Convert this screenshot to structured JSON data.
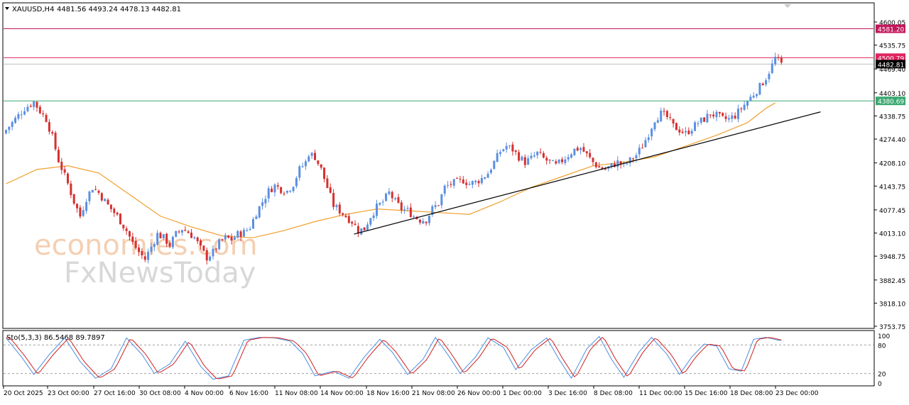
{
  "window": {
    "symbol_label": "XAUUSD,H4",
    "ohlc": "4481.56 4493.24 4478.13 4482.81"
  },
  "price_axis": {
    "ticks": [
      "4600.05",
      "4535.75",
      "4469.40",
      "4403.10",
      "4338.75",
      "4274.40",
      "4208.10",
      "4143.75",
      "4077.45",
      "4013.10",
      "3948.75",
      "3882.45",
      "3818.10",
      "3753.75"
    ],
    "tick_values": [
      4600.05,
      4535.75,
      4469.4,
      4403.1,
      4338.75,
      4274.4,
      4208.1,
      4143.75,
      4077.45,
      4013.1,
      3948.75,
      3882.45,
      3818.1,
      3753.75
    ]
  },
  "levels": [
    {
      "label": "4581.20",
      "value": 4581.2,
      "color": "#c2185b",
      "style": "line"
    },
    {
      "label": "4500.79",
      "value": 4500.79,
      "color": "#e0245e",
      "style": "line"
    },
    {
      "label": "4482.81",
      "value": 4482.81,
      "color": "#000000",
      "style": "current"
    },
    {
      "label": "4380.69",
      "value": 4380.69,
      "color": "#3aa870",
      "style": "line"
    }
  ],
  "stoch": {
    "label": "Sto(5,3,3) 86.5468 89.7897",
    "ticks": [
      "100",
      "80",
      "20",
      "0"
    ],
    "tick_values": [
      100,
      80,
      20,
      0
    ]
  },
  "time_axis": {
    "labels": [
      "20 Oct 2025",
      "23 Oct 00:00",
      "27 Oct 16:00",
      "30 Oct 08:00",
      "4 Nov 00:00",
      "6 Nov 16:00",
      "11 Nov 08:00",
      "14 Nov 00:00",
      "18 Nov 16:00",
      "21 Nov 08:00",
      "26 Nov 00:00",
      "1 Dec 00:00",
      "3 Dec 16:00",
      "8 Dec 08:00",
      "11 Dec 00:00",
      "15 Dec 16:00",
      "18 Dec 08:00",
      "23 Dec 00:00"
    ]
  },
  "watermark": {
    "line1": "economies.com",
    "line2": "FxNewsToday"
  },
  "colors": {
    "bull": "#5b8fe0",
    "bear": "#d63030",
    "ma": "#f0a030",
    "stoch_main": "#4a8fe0",
    "stoch_signal": "#d02020",
    "trendline": "#000000"
  },
  "chart_data": {
    "type": "candlestick",
    "symbol": "XAUUSD",
    "timeframe": "H4",
    "ylim": [
      3753.75,
      4625
    ],
    "close_path": [
      [
        0,
        4300
      ],
      [
        3,
        4330
      ],
      [
        6,
        4360
      ],
      [
        9,
        4378
      ],
      [
        11,
        4352
      ],
      [
        13,
        4330
      ],
      [
        15,
        4280
      ],
      [
        17,
        4215
      ],
      [
        20,
        4150
      ],
      [
        22,
        4100
      ],
      [
        24,
        4060
      ],
      [
        26,
        4110
      ],
      [
        28,
        4140
      ],
      [
        30,
        4125
      ],
      [
        33,
        4090
      ],
      [
        36,
        4060
      ],
      [
        39,
        4020
      ],
      [
        41,
        3985
      ],
      [
        43,
        3960
      ],
      [
        45,
        3940
      ],
      [
        47,
        3975
      ],
      [
        49,
        4010
      ],
      [
        51,
        4000
      ],
      [
        53,
        3980
      ],
      [
        55,
        4010
      ],
      [
        57,
        4025
      ],
      [
        59,
        4015
      ],
      [
        61,
        4000
      ],
      [
        63,
        3970
      ],
      [
        65,
        3945
      ],
      [
        67,
        3960
      ],
      [
        69,
        3985
      ],
      [
        71,
        4000
      ],
      [
        73,
        3995
      ],
      [
        75,
        4010
      ],
      [
        77,
        4015
      ],
      [
        79,
        4030
      ],
      [
        81,
        4070
      ],
      [
        83,
        4100
      ],
      [
        85,
        4130
      ],
      [
        87,
        4145
      ],
      [
        89,
        4135
      ],
      [
        91,
        4130
      ],
      [
        93,
        4150
      ],
      [
        95,
        4190
      ],
      [
        97,
        4210
      ],
      [
        98,
        4235
      ],
      [
        100,
        4225
      ],
      [
        102,
        4190
      ],
      [
        104,
        4140
      ],
      [
        106,
        4090
      ],
      [
        108,
        4075
      ],
      [
        110,
        4060
      ],
      [
        112,
        4045
      ],
      [
        114,
        4020
      ],
      [
        116,
        4025
      ],
      [
        118,
        4060
      ],
      [
        120,
        4085
      ],
      [
        122,
        4100
      ],
      [
        124,
        4125
      ],
      [
        126,
        4100
      ],
      [
        128,
        4080
      ],
      [
        130,
        4075
      ],
      [
        132,
        4060
      ],
      [
        134,
        4050
      ],
      [
        136,
        4050
      ],
      [
        138,
        4080
      ],
      [
        140,
        4095
      ],
      [
        142,
        4140
      ],
      [
        144,
        4150
      ],
      [
        146,
        4155
      ],
      [
        148,
        4160
      ],
      [
        150,
        4150
      ],
      [
        152,
        4155
      ],
      [
        154,
        4165
      ],
      [
        156,
        4180
      ],
      [
        158,
        4210
      ],
      [
        160,
        4240
      ],
      [
        162,
        4255
      ],
      [
        164,
        4245
      ],
      [
        166,
        4225
      ],
      [
        168,
        4210
      ],
      [
        170,
        4220
      ],
      [
        172,
        4235
      ],
      [
        174,
        4220
      ],
      [
        176,
        4210
      ],
      [
        178,
        4200
      ],
      [
        180,
        4215
      ],
      [
        182,
        4230
      ],
      [
        184,
        4245
      ],
      [
        186,
        4250
      ],
      [
        188,
        4230
      ],
      [
        190,
        4210
      ],
      [
        192,
        4195
      ],
      [
        194,
        4190
      ],
      [
        196,
        4200
      ],
      [
        198,
        4210
      ],
      [
        200,
        4200
      ],
      [
        202,
        4215
      ],
      [
        204,
        4230
      ],
      [
        206,
        4255
      ],
      [
        208,
        4290
      ],
      [
        210,
        4330
      ],
      [
        212,
        4345
      ],
      [
        214,
        4335
      ],
      [
        216,
        4310
      ],
      [
        218,
        4300
      ],
      [
        220,
        4290
      ],
      [
        222,
        4305
      ],
      [
        224,
        4320
      ],
      [
        226,
        4330
      ],
      [
        228,
        4345
      ],
      [
        230,
        4340
      ],
      [
        232,
        4330
      ],
      [
        234,
        4330
      ],
      [
        236,
        4340
      ],
      [
        238,
        4360
      ],
      [
        240,
        4380
      ],
      [
        242,
        4400
      ],
      [
        244,
        4420
      ],
      [
        246,
        4445
      ],
      [
        248,
        4480
      ],
      [
        249,
        4500
      ],
      [
        250,
        4490
      ],
      [
        251,
        4482.81
      ]
    ],
    "ma_path": [
      [
        0,
        4150
      ],
      [
        10,
        4190
      ],
      [
        20,
        4200
      ],
      [
        30,
        4180
      ],
      [
        40,
        4120
      ],
      [
        50,
        4060
      ],
      [
        60,
        4030
      ],
      [
        70,
        4005
      ],
      [
        80,
        4000
      ],
      [
        90,
        4020
      ],
      [
        100,
        4045
      ],
      [
        110,
        4065
      ],
      [
        120,
        4080
      ],
      [
        130,
        4075
      ],
      [
        140,
        4070
      ],
      [
        150,
        4065
      ],
      [
        160,
        4100
      ],
      [
        170,
        4140
      ],
      [
        180,
        4170
      ],
      [
        190,
        4200
      ],
      [
        200,
        4210
      ],
      [
        210,
        4225
      ],
      [
        220,
        4255
      ],
      [
        230,
        4285
      ],
      [
        240,
        4320
      ],
      [
        246,
        4360
      ],
      [
        249,
        4375
      ]
    ],
    "trendline": [
      [
        113,
        4010
      ],
      [
        264,
        4350
      ]
    ],
    "stoch_path": [
      [
        0,
        95
      ],
      [
        5,
        55
      ],
      [
        9,
        18
      ],
      [
        14,
        60
      ],
      [
        19,
        95
      ],
      [
        24,
        45
      ],
      [
        29,
        10
      ],
      [
        34,
        30
      ],
      [
        39,
        95
      ],
      [
        44,
        60
      ],
      [
        48,
        20
      ],
      [
        53,
        40
      ],
      [
        58,
        88
      ],
      [
        63,
        35
      ],
      [
        67,
        8
      ],
      [
        72,
        15
      ],
      [
        77,
        90
      ],
      [
        82,
        96
      ],
      [
        87,
        95
      ],
      [
        92,
        88
      ],
      [
        96,
        62
      ],
      [
        100,
        15
      ],
      [
        106,
        25
      ],
      [
        111,
        10
      ],
      [
        116,
        55
      ],
      [
        121,
        92
      ],
      [
        125,
        65
      ],
      [
        130,
        18
      ],
      [
        135,
        50
      ],
      [
        139,
        96
      ],
      [
        143,
        60
      ],
      [
        147,
        20
      ],
      [
        152,
        55
      ],
      [
        156,
        95
      ],
      [
        161,
        75
      ],
      [
        165,
        28
      ],
      [
        170,
        70
      ],
      [
        175,
        95
      ],
      [
        179,
        50
      ],
      [
        183,
        10
      ],
      [
        188,
        72
      ],
      [
        192,
        98
      ],
      [
        196,
        50
      ],
      [
        200,
        12
      ],
      [
        205,
        66
      ],
      [
        209,
        96
      ],
      [
        214,
        60
      ],
      [
        218,
        18
      ],
      [
        222,
        55
      ],
      [
        226,
        82
      ],
      [
        230,
        78
      ],
      [
        234,
        30
      ],
      [
        238,
        25
      ],
      [
        242,
        92
      ],
      [
        246,
        96
      ],
      [
        250,
        90
      ]
    ]
  }
}
